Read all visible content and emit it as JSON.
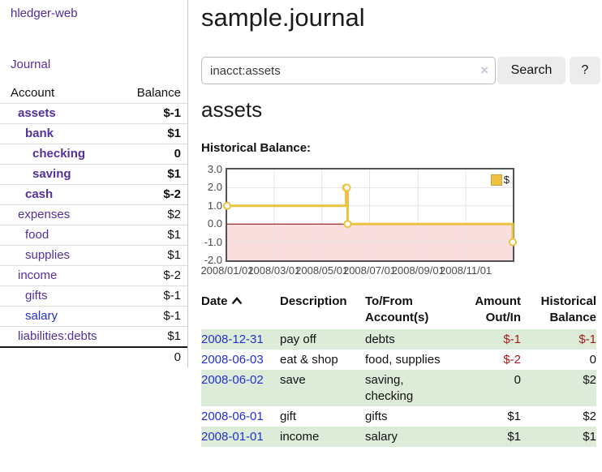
{
  "app": {
    "brand": "hledger-web"
  },
  "sidebar": {
    "journal_label": "Journal",
    "accounts_table": {
      "headers": [
        "Account",
        "Balance"
      ],
      "rows": [
        {
          "name": "assets",
          "depth": 0,
          "bold": true,
          "balance": "$-1",
          "neg": "strong",
          "link_color": "purple"
        },
        {
          "name": "bank",
          "depth": 1,
          "bold": true,
          "balance": "$1",
          "neg": "none",
          "link_color": "purple"
        },
        {
          "name": "checking",
          "depth": 2,
          "bold": true,
          "balance": "0",
          "neg": "none",
          "link_color": "purple"
        },
        {
          "name": "saving",
          "depth": 2,
          "bold": true,
          "balance": "$1",
          "neg": "none",
          "link_color": "purple"
        },
        {
          "name": "cash",
          "depth": 1,
          "bold": true,
          "balance": "$-2",
          "neg": "strong",
          "link_color": "purple"
        },
        {
          "name": "expenses",
          "depth": 0,
          "bold": false,
          "balance": "$2",
          "neg": "none",
          "link_color": "purple"
        },
        {
          "name": "food",
          "depth": 1,
          "bold": false,
          "balance": "$1",
          "neg": "none",
          "link_color": "purple"
        },
        {
          "name": "supplies",
          "depth": 1,
          "bold": false,
          "balance": "$1",
          "neg": "none",
          "link_color": "purple"
        },
        {
          "name": "income",
          "depth": 0,
          "bold": false,
          "balance": "$-2",
          "neg": "soft",
          "link_color": "purple"
        },
        {
          "name": "gifts",
          "depth": 1,
          "bold": false,
          "balance": "$-1",
          "neg": "soft",
          "link_color": "purple"
        },
        {
          "name": "salary",
          "depth": 1,
          "bold": false,
          "balance": "$-1",
          "neg": "soft",
          "link_color": "blue"
        },
        {
          "name": "liabilities:debts",
          "depth": 0,
          "bold": false,
          "balance": "$1",
          "neg": "none",
          "link_color": "purple"
        }
      ],
      "total": "0"
    }
  },
  "main": {
    "title": "sample.journal",
    "search": {
      "value": "inacct:assets",
      "clear_icon": "×",
      "button_label": "Search",
      "help_label": "?"
    },
    "account_heading": "assets",
    "section_label": "Historical Balance:"
  },
  "chart_data": {
    "type": "line",
    "style": "step",
    "title": "Historical Balance:",
    "legend": "$",
    "legend_position": "top-right",
    "grid": true,
    "ylim": [
      -2.0,
      3.0
    ],
    "x_range": [
      "2008-01-01",
      "2008-12-31"
    ],
    "ytick_labels": [
      "3.0",
      "2.0",
      "1.0",
      "0.0",
      "-1.0",
      "-2.0"
    ],
    "yticks": [
      3.0,
      2.0,
      1.0,
      0.0,
      -1.0,
      -2.0
    ],
    "xtick_dates": [
      "2008-01-01",
      "2008-03-01",
      "2008-05-01",
      "2008-07-01",
      "2008-09-01",
      "2008-11-01"
    ],
    "xtick_labels": [
      "2008/01/01",
      "2008/03/01",
      "2008/05/01",
      "2008/07/01",
      "2008/09/01",
      "2008/11/01"
    ],
    "series": [
      {
        "name": "$",
        "color": "#edc240",
        "points": [
          [
            "2008-01-01",
            1
          ],
          [
            "2008-06-01",
            2
          ],
          [
            "2008-06-02",
            2
          ],
          [
            "2008-06-03",
            0
          ],
          [
            "2008-12-31",
            -1
          ]
        ]
      }
    ],
    "negative_region_color": "#fadddd",
    "zero_line_color": "#8b0000"
  },
  "register_table": {
    "headers": [
      "Date",
      "Description",
      "To/From Account(s)",
      "Amount Out/In",
      "Historical Balance"
    ],
    "sort": {
      "column": "Date",
      "direction": "ascending"
    },
    "rows": [
      {
        "date": "2008-12-31",
        "description": "pay off",
        "accounts": "debts",
        "amount": "$-1",
        "amount_neg": true,
        "balance": "$-1",
        "balance_neg": true
      },
      {
        "date": "2008-06-03",
        "description": "eat & shop",
        "accounts": "food, supplies",
        "amount": "$-2",
        "amount_neg": true,
        "balance": "0",
        "balance_neg": false
      },
      {
        "date": "2008-06-02",
        "description": "save",
        "accounts": "saving, checking",
        "amount": "0",
        "amount_neg": false,
        "balance": "$2",
        "balance_neg": false
      },
      {
        "date": "2008-06-01",
        "description": "gift",
        "accounts": "gifts",
        "amount": "$1",
        "amount_neg": false,
        "balance": "$2",
        "balance_neg": false
      },
      {
        "date": "2008-01-01",
        "description": "income",
        "accounts": "salary",
        "amount": "$1",
        "amount_neg": false,
        "balance": "$1",
        "balance_neg": false
      }
    ]
  },
  "colors": {
    "accent_purple": "#53309e",
    "link_blue": "#2230d4",
    "negative_strong": "#a01c1c",
    "negative_soft": "#c2606e",
    "row_green": "#dcecd8",
    "chart_line": "#edc240",
    "chart_negative_fill": "#fadddd",
    "zero_line": "#8b0000"
  }
}
